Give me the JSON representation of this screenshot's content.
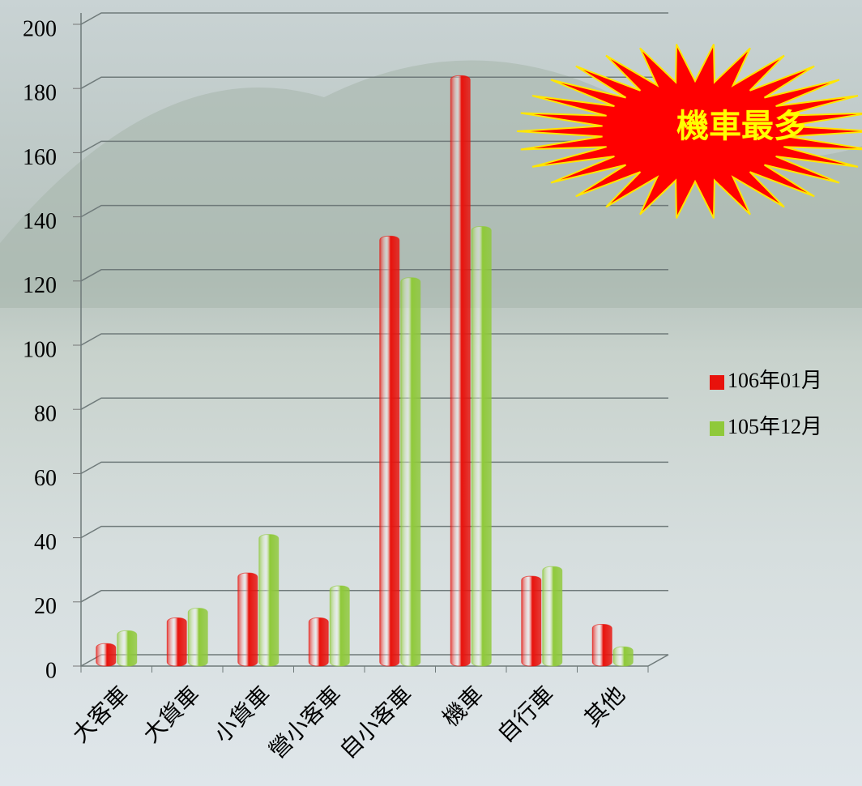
{
  "chart_data": {
    "type": "bar",
    "categories": [
      "大客車",
      "大貨車",
      "小貨車",
      "營小客車",
      "自小客車",
      "機車",
      "自行車",
      "其他"
    ],
    "series": [
      {
        "name": "106年01月",
        "color": "#e8120c",
        "values": [
          6,
          14,
          28,
          14,
          133,
          183,
          27,
          12
        ]
      },
      {
        "name": "105年12月",
        "color": "#8fc93a",
        "values": [
          10,
          17,
          40,
          24,
          120,
          136,
          30,
          5
        ]
      }
    ],
    "ylim": [
      0,
      200
    ],
    "yticks": [
      0,
      20,
      40,
      60,
      80,
      100,
      120,
      140,
      160,
      180,
      200
    ],
    "grid": true,
    "legend": "right",
    "annotation": "機車最多"
  }
}
